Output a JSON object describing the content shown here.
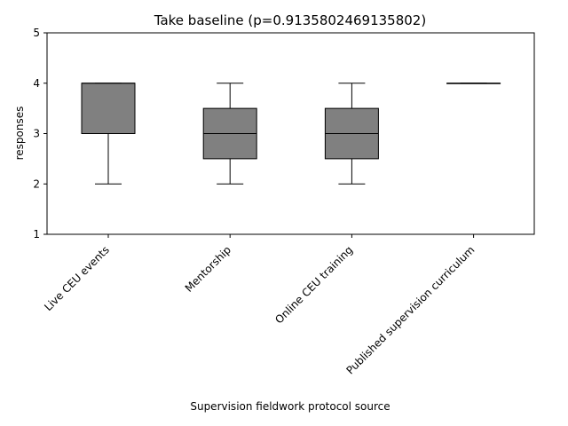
{
  "chart_data": {
    "type": "box",
    "title": "Take baseline (p=0.9135802469135802)",
    "xlabel": "Supervision fieldwork protocol source",
    "ylabel": "responses",
    "ylim": [
      1,
      5
    ],
    "yticks": [
      "1",
      "2",
      "3",
      "4",
      "5"
    ],
    "grid": false,
    "categories": [
      "Live CEU events",
      "Mentorship",
      "Online CEU training",
      "Published supervision curriculum"
    ],
    "boxes": [
      {
        "category": "Live CEU events",
        "whisker_low": 2,
        "q1": 3,
        "median": 4,
        "q3": 4,
        "whisker_high": 4
      },
      {
        "category": "Mentorship",
        "whisker_low": 2,
        "q1": 2.5,
        "median": 3,
        "q3": 3.5,
        "whisker_high": 4
      },
      {
        "category": "Online CEU training",
        "whisker_low": 2,
        "q1": 2.5,
        "median": 3,
        "q3": 3.5,
        "whisker_high": 4
      },
      {
        "category": "Published supervision curriculum",
        "whisker_low": 4,
        "q1": 4,
        "median": 4,
        "q3": 4,
        "whisker_high": 4
      }
    ],
    "colors": {
      "box_fill": "#808080",
      "line": "#000000"
    }
  }
}
